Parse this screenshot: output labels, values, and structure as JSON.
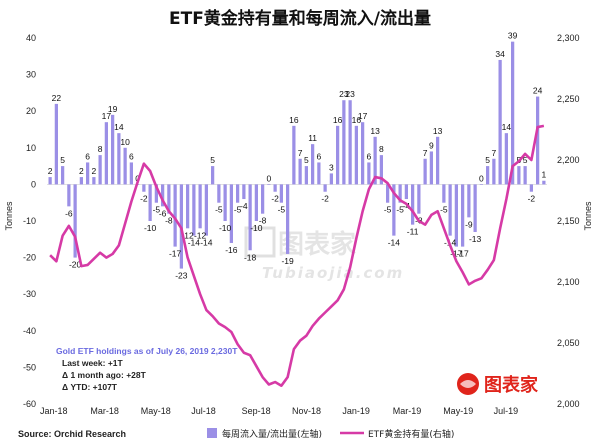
{
  "chart_data": {
    "type": "bar+line",
    "title": "ETF黄金持有量和每周流入/流出量",
    "ylabel_left": "Tonnes",
    "ylabel_right": "Tonnes",
    "ylim_left": [
      -60,
      40
    ],
    "ylim_right": [
      2000,
      2300
    ],
    "left_ticks": [
      "40",
      "30",
      "20",
      "10",
      "0",
      "-10",
      "-20",
      "-30",
      "-40",
      "-50",
      "-60"
    ],
    "right_ticks": [
      "2,300",
      "2,250",
      "2,200",
      "2,150",
      "2,100",
      "2,050",
      "2,000"
    ],
    "x_ticks": [
      "Jan-18",
      "Mar-18",
      "May-18",
      "Jul-18",
      "Sep-18",
      "Nov-18",
      "Jan-19",
      "Mar-19",
      "May-19",
      "Jul-19"
    ],
    "series": [
      {
        "name": "每周流入量/流出量(左轴)",
        "axis": "left",
        "color": "#9b8fe6",
        "values": [
          2,
          22,
          5,
          -6,
          -20,
          2,
          6,
          2,
          8,
          17,
          19,
          14,
          10,
          6,
          0,
          -2,
          -10,
          -5,
          -6,
          -8,
          -17,
          -23,
          -12,
          -14,
          -12,
          -14,
          5,
          -5,
          -10,
          -16,
          -5,
          -4,
          -18,
          -10,
          -8,
          0,
          -2,
          -5,
          -19,
          16,
          7,
          5,
          11,
          6,
          -2,
          3,
          16,
          23,
          23,
          16,
          17,
          6,
          13,
          8,
          -5,
          -14,
          -5,
          -4,
          -11,
          -8,
          7,
          9,
          13,
          -5,
          -14,
          -17,
          -17,
          -9,
          -13,
          0,
          5,
          7,
          34,
          14,
          39,
          5,
          5,
          -2,
          24,
          1
        ]
      },
      {
        "name": "ETF黄金持有量(右轴)",
        "axis": "right",
        "color": "#d63aa6",
        "values": [
          2122,
          2117,
          2138,
          2146,
          2137,
          2113,
          2114,
          2119,
          2124,
          2120,
          2123,
          2130,
          2148,
          2166,
          2182,
          2197,
          2191,
          2178,
          2167,
          2158,
          2152,
          2144,
          2120,
          2105,
          2090,
          2077,
          2072,
          2066,
          2063,
          2059,
          2049,
          2042,
          2040,
          2031,
          2022,
          2016,
          2018,
          2015,
          2022,
          2045,
          2052,
          2056,
          2064,
          2070,
          2075,
          2080,
          2085,
          2094,
          2112,
          2136,
          2158,
          2176,
          2186,
          2185,
          2181,
          2173,
          2167,
          2164,
          2158,
          2150,
          2147,
          2155,
          2158,
          2144,
          2130,
          2117,
          2108,
          2098,
          2101,
          2103,
          2110,
          2118,
          2144,
          2168,
          2195,
          2199,
          2205,
          2200,
          2227,
          2228
        ]
      }
    ],
    "annotations": [
      "Gold ETF holdings as of July 26, 2019 2,230T",
      "Last week: +1T",
      "Δ 1 month ago: +28T",
      "Δ YTD: +107T"
    ],
    "grid": false,
    "legend_position": "bottom"
  },
  "header": {
    "title": "ETF黄金持有量和每周流入/流出量"
  },
  "axes": {
    "left_title": "Tonnes",
    "right_title": "Tonnes"
  },
  "note": {
    "heading": "Gold ETF holdings as of July 26, 2019 2,230T",
    "line1": "Last week: +1T",
    "line2": "Δ 1 month ago: +28T",
    "line3": "Δ YTD: +107T"
  },
  "footer": {
    "source": "Source: Orchid Research",
    "legend_bars": "每周流入量/流出量(左轴)",
    "legend_line": "ETF黄金持有量(右轴)"
  },
  "watermark": {
    "cn": "图表家",
    "en": "Tubiaojia.com",
    "logo_text": "图表家"
  },
  "colors": {
    "bars": "#9b8fe6",
    "line": "#d63aa6",
    "note_head": "#6a6ae0",
    "logo_red": "#e0241b"
  }
}
